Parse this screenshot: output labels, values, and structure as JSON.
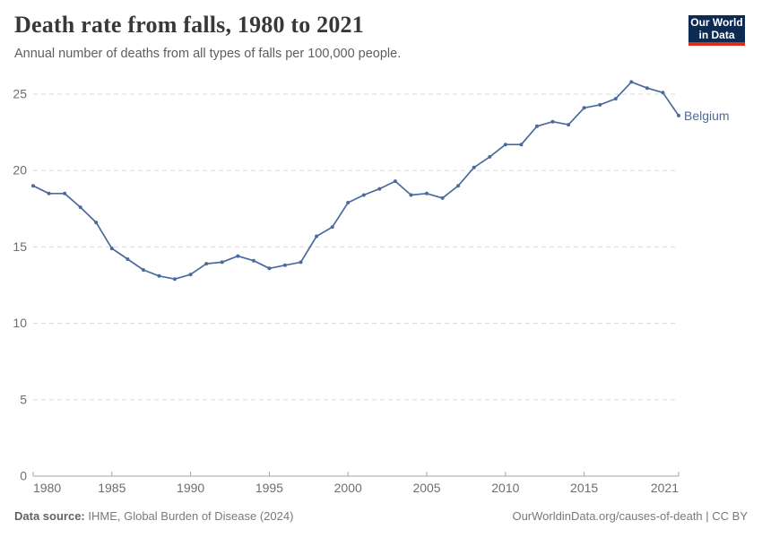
{
  "header": {
    "title": "Death rate from falls, 1980 to 2021",
    "subtitle": "Annual number of deaths from all types of falls per 100,000 people.",
    "logo": {
      "line1": "Our World",
      "line2": "in Data"
    }
  },
  "colors": {
    "series_blue": "#4c6a9c",
    "logo_navy": "#0d2b52",
    "logo_red": "#d7301f",
    "grid_gray": "#dadada",
    "axis_gray": "#a5a5a5",
    "tick_label_gray": "#6e6e6e"
  },
  "chart_data": {
    "type": "line",
    "title": "Death rate from falls, 1980 to 2021",
    "subtitle": "Annual number of deaths from all types of falls per 100,000 people.",
    "xlabel": "",
    "ylabel": "",
    "xlim": [
      1980,
      2021
    ],
    "ylim": [
      0,
      25
    ],
    "x_ticks": [
      1980,
      1985,
      1990,
      1995,
      2000,
      2005,
      2010,
      2015,
      2021
    ],
    "y_ticks": [
      0,
      5,
      10,
      15,
      20,
      25
    ],
    "grid": "horizontal-dashed",
    "legend_position": "end-of-line-label",
    "series": [
      {
        "name": "Belgium",
        "color": "#4c6a9c",
        "x": [
          1980,
          1981,
          1982,
          1983,
          1984,
          1985,
          1986,
          1987,
          1988,
          1989,
          1990,
          1991,
          1992,
          1993,
          1994,
          1995,
          1996,
          1997,
          1998,
          1999,
          2000,
          2001,
          2002,
          2003,
          2004,
          2005,
          2006,
          2007,
          2008,
          2009,
          2010,
          2011,
          2012,
          2013,
          2014,
          2015,
          2016,
          2017,
          2018,
          2019,
          2020,
          2021
        ],
        "values": [
          19.0,
          18.5,
          18.5,
          17.6,
          16.6,
          14.9,
          14.2,
          13.5,
          13.1,
          12.9,
          13.2,
          13.9,
          14.0,
          14.4,
          14.1,
          13.6,
          13.8,
          14.0,
          15.7,
          16.3,
          17.9,
          18.4,
          18.8,
          19.3,
          18.4,
          18.5,
          18.2,
          19.0,
          20.2,
          20.9,
          21.7,
          21.7,
          22.9,
          23.2,
          23.0,
          24.1,
          24.3,
          24.7,
          25.8,
          25.4,
          25.1,
          23.6
        ]
      }
    ]
  },
  "footer": {
    "source_label": "Data source:",
    "source_text": "IHME, Global Burden of Disease (2024)",
    "link_text": "OurWorldinData.org/causes-of-death | CC BY"
  }
}
